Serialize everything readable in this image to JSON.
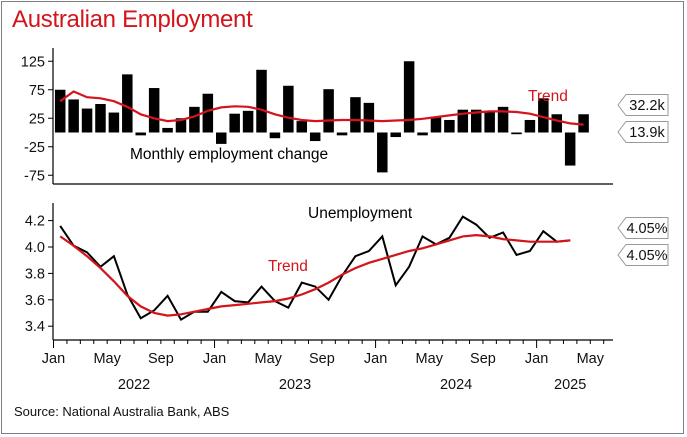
{
  "title": "Australian Employment",
  "source": "Source: National Australia Bank, ABS",
  "colors": {
    "title": "#d4141c",
    "bars": "#000000",
    "trend": "#d4141c",
    "line": "#000000"
  },
  "chart_data": [
    {
      "type": "bar",
      "label": "Monthly employment change",
      "trend_label": "Trend",
      "ylim": [
        -100,
        150
      ],
      "yticks": [
        125,
        75,
        25,
        -25,
        -75
      ],
      "x_start": "2022-01",
      "months": 41,
      "values": [
        75,
        58,
        42,
        50,
        35,
        102,
        -5,
        78,
        8,
        25,
        45,
        68,
        -20,
        33,
        38,
        110,
        -10,
        82,
        20,
        -15,
        76,
        -5,
        62,
        52,
        -70,
        -8,
        125,
        -5,
        28,
        22,
        40,
        40,
        38,
        45,
        -3,
        22,
        60,
        32,
        -58,
        32
      ],
      "trend": [
        55,
        72,
        62,
        60,
        55,
        45,
        32,
        25,
        20,
        22,
        28,
        38,
        44,
        46,
        45,
        40,
        32,
        26,
        22,
        20,
        21,
        22,
        22,
        21,
        20,
        21,
        22,
        24,
        27,
        30,
        33,
        35,
        37,
        37,
        36,
        33,
        27,
        21,
        16,
        13.9
      ],
      "end_labels": {
        "series": "32.2k",
        "trend": "13.9k"
      }
    },
    {
      "type": "line",
      "label": "Unemployment",
      "trend_label": "Trend",
      "ylim": [
        3.3,
        4.3
      ],
      "yticks": [
        4.2,
        4.0,
        3.8,
        3.6,
        3.4
      ],
      "x_start": "2022-01",
      "values": [
        4.16,
        4.01,
        3.96,
        3.85,
        3.93,
        3.64,
        3.46,
        3.52,
        3.63,
        3.45,
        3.51,
        3.51,
        3.66,
        3.59,
        3.58,
        3.7,
        3.59,
        3.54,
        3.73,
        3.7,
        3.6,
        3.78,
        3.93,
        3.97,
        4.08,
        3.71,
        3.85,
        4.08,
        4.02,
        4.07,
        4.23,
        4.17,
        4.07,
        4.11,
        3.94,
        3.97,
        4.12,
        4.04,
        4.05
      ],
      "trend": [
        4.08,
        4.01,
        3.93,
        3.84,
        3.74,
        3.63,
        3.55,
        3.5,
        3.48,
        3.49,
        3.51,
        3.53,
        3.55,
        3.56,
        3.57,
        3.58,
        3.59,
        3.61,
        3.64,
        3.68,
        3.73,
        3.79,
        3.84,
        3.88,
        3.91,
        3.94,
        3.97,
        3.99,
        4.02,
        4.05,
        4.08,
        4.09,
        4.08,
        4.06,
        4.05,
        4.04,
        4.04,
        4.04,
        4.05
      ],
      "end_labels": {
        "series": "4.05%",
        "trend": "4.05%"
      }
    }
  ],
  "x_axis": {
    "month_labels": [
      {
        "m": 0,
        "t": "Jan"
      },
      {
        "m": 4,
        "t": "May"
      },
      {
        "m": 8,
        "t": "Sep"
      },
      {
        "m": 12,
        "t": "Jan"
      },
      {
        "m": 16,
        "t": "May"
      },
      {
        "m": 20,
        "t": "Sep"
      },
      {
        "m": 24,
        "t": "Jan"
      },
      {
        "m": 28,
        "t": "May"
      },
      {
        "m": 32,
        "t": "Sep"
      },
      {
        "m": 36,
        "t": "Jan"
      },
      {
        "m": 40,
        "t": "May"
      }
    ],
    "year_labels": [
      {
        "m": 6,
        "t": "2022"
      },
      {
        "m": 18,
        "t": "2023"
      },
      {
        "m": 30,
        "t": "2024"
      },
      {
        "m": 38.5,
        "t": "2025"
      }
    ]
  }
}
